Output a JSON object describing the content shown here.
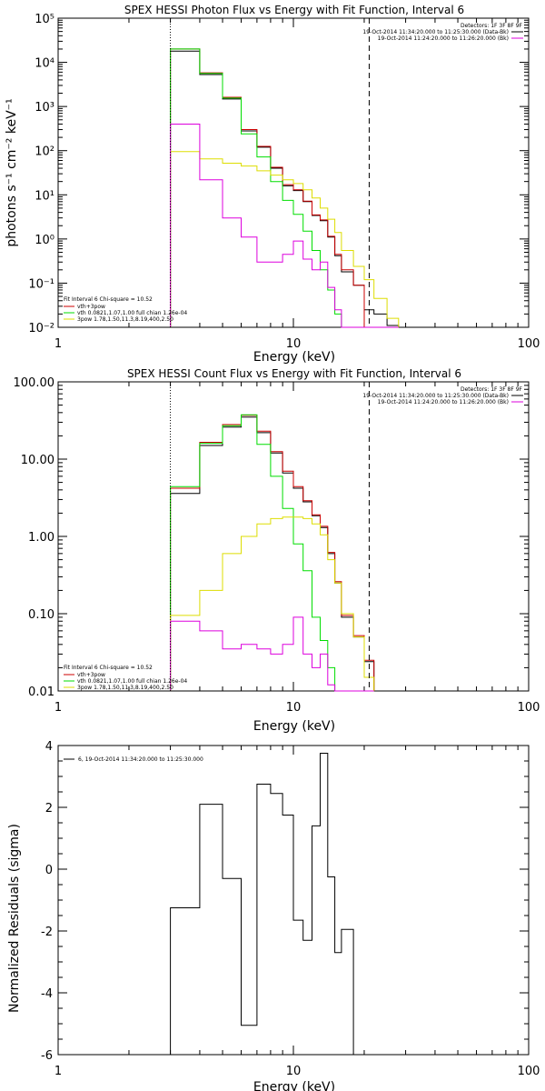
{
  "chart_data": [
    {
      "type": "line",
      "title": "SPEX HESSI Photon Flux vs Energy with Fit Function, Interval 6",
      "xlabel": "Energy (keV)",
      "ylabel": "photons s⁻¹ cm⁻² keV⁻¹",
      "xscale": "log",
      "yscale": "log",
      "xlim": [
        1,
        100
      ],
      "ylim": [
        0.01,
        100000
      ],
      "x_ticks": [
        "1",
        "10",
        "100"
      ],
      "y_ticks": [
        "10⁻²",
        "10⁻¹",
        "10⁰",
        "10¹",
        "10²",
        "10³",
        "10⁴",
        "10⁵"
      ],
      "legend_top": [
        "Detectors: 1F 3F 8F 9F",
        "19-Oct-2014 11:34:20.000 to 11:25:30.000 (Data-Bk)",
        "19-Oct-2014 11:24:20.000 to 11:26:20.000 (Bk)"
      ],
      "legend_bottom": {
        "header": "Fit Interval 6   Chi-square = 10.52",
        "entries": [
          "vth+3pow",
          "vth 0.0821,1.07,1.00  full chian 1.26e-04",
          "3pow 1.78,1.50,11.3,8.19,400,2.50"
        ]
      },
      "vlines": {
        "dotted": 3.0,
        "dashed": 21.0
      },
      "edges": [
        3.0,
        3.33,
        4.0,
        5.0,
        6.0,
        7.0,
        8.0,
        9.0,
        10.0,
        11.0,
        12.0,
        13.0,
        14.0,
        15.0,
        16.0,
        18.0,
        20.0,
        22.0,
        25.0,
        28.0
      ],
      "series": [
        {
          "color": "#000000",
          "values": [
            18000,
            18000,
            5300,
            1480,
            280,
            120,
            40,
            16,
            12.5,
            7,
            3.4,
            2.6,
            1.1,
            0.42,
            0.18,
            0.09,
            0.025,
            0.02,
            0.011
          ]
        },
        {
          "color": "#cc0000",
          "values": [
            20000,
            20000,
            5800,
            1620,
            300,
            125,
            42,
            17,
            13,
            7.2,
            3.5,
            2.7,
            1.15,
            0.45,
            0.2,
            0.09,
            0.006,
            0.006,
            0.006
          ]
        },
        {
          "color": "#00dd00",
          "values": [
            20000,
            20000,
            5600,
            1550,
            240,
            72,
            20,
            7.5,
            3.6,
            1.5,
            0.55,
            0.2,
            0.07,
            0.02,
            0.006,
            0.006,
            0.006,
            0.006,
            0.006
          ]
        },
        {
          "color": "#dddd00",
          "values": [
            95,
            95,
            65,
            52,
            45,
            35,
            28,
            22,
            18,
            13,
            8.5,
            5,
            2.8,
            1.4,
            0.55,
            0.24,
            0.12,
            0.045,
            0.016
          ]
        },
        {
          "color": "#dd00dd",
          "values": [
            400,
            400,
            22,
            3,
            1.1,
            0.3,
            0.3,
            0.45,
            0.9,
            0.35,
            0.2,
            0.3,
            0.08,
            0.025,
            0.007,
            0.006,
            0.006,
            0.006,
            0.006
          ]
        }
      ]
    },
    {
      "type": "line",
      "title": "SPEX HESSI Count Flux vs Energy with Fit Function, Interval 6",
      "xlabel": "Energy (keV)",
      "xscale": "log",
      "yscale": "log",
      "xlim": [
        1,
        100
      ],
      "ylim": [
        0.01,
        100
      ],
      "x_ticks": [
        "1",
        "10",
        "100"
      ],
      "y_ticks": [
        "0.01",
        "0.10",
        "1.00",
        "10.00",
        "100.00"
      ],
      "legend_top": [
        "Detectors: 1F 3F 8F 9F",
        "19-Oct-2014 11:34:20.000 to 11:25:30.000 (Data-Bk)",
        "19-Oct-2014 11:24:20.000 to 11:26:20.000 (Bk)"
      ],
      "legend_bottom": {
        "header": "Fit Interval 6   Chi-square = 10.52",
        "entries": [
          "vth+3pow",
          "vth 0.0821,1.07,1.00  full chian 1.26e-04",
          "3pow 1.78,1.50,11.3,8.19,400,2.50"
        ]
      },
      "vlines": {
        "dotted": 3.0,
        "dashed": 21.0
      },
      "edges": [
        3.0,
        4.0,
        5.0,
        6.0,
        7.0,
        8.0,
        9.0,
        10.0,
        11.0,
        12.0,
        13.0,
        14.0,
        15.0,
        16.0,
        18.0,
        20.0,
        22.0
      ],
      "series": [
        {
          "color": "#000000",
          "values": [
            3.6,
            15,
            26,
            35,
            22,
            12,
            6.6,
            4.2,
            2.8,
            1.85,
            1.3,
            0.6,
            0.25,
            0.09,
            0.05,
            0.024
          ]
        },
        {
          "color": "#cc0000",
          "values": [
            4.2,
            16.5,
            28,
            37,
            23,
            12.5,
            7,
            4.4,
            2.9,
            1.9,
            1.35,
            0.62,
            0.26,
            0.095,
            0.052,
            0.025
          ]
        },
        {
          "color": "#00dd00",
          "values": [
            4.4,
            16,
            27,
            37.5,
            15.5,
            6,
            2.3,
            0.8,
            0.36,
            0.09,
            0.045,
            0.02,
            0.009,
            0.009,
            0.009,
            0.009
          ]
        },
        {
          "color": "#dddd00",
          "values": [
            0.095,
            0.2,
            0.6,
            1.0,
            1.45,
            1.7,
            1.78,
            1.78,
            1.7,
            1.45,
            1.05,
            0.5,
            0.25,
            0.1,
            0.05,
            0.015
          ]
        },
        {
          "color": "#dd00dd",
          "values": [
            0.08,
            0.06,
            0.035,
            0.04,
            0.035,
            0.03,
            0.04,
            0.09,
            0.03,
            0.02,
            0.03,
            0.012,
            0.009,
            0.009,
            0.009,
            0.009
          ]
        }
      ]
    },
    {
      "type": "line",
      "title": "",
      "xlabel": "Energy (keV)",
      "ylabel": "Normalized Residuals (sigma)",
      "xscale": "log",
      "yscale": "linear",
      "xlim": [
        1,
        100
      ],
      "ylim": [
        -6,
        4
      ],
      "x_ticks": [
        "1",
        "10",
        "100"
      ],
      "y_ticks": [
        "-6",
        "-4",
        "-2",
        "0",
        "2",
        "4"
      ],
      "legend": "6, 19-Oct-2014 11:34:20.000 to 11:25:30.000",
      "edges": [
        3.0,
        4.0,
        5.0,
        6.0,
        7.0,
        8.0,
        9.0,
        10.0,
        11.0,
        12.0,
        13.0,
        14.0,
        15.0,
        16.0,
        18.0,
        20.0
      ],
      "series": [
        {
          "color": "#000000",
          "values": [
            -1.25,
            2.1,
            -0.3,
            -5.05,
            2.75,
            2.45,
            1.75,
            -1.65,
            -2.3,
            1.4,
            3.75,
            -0.25,
            -2.7,
            -1.95
          ]
        }
      ]
    }
  ]
}
